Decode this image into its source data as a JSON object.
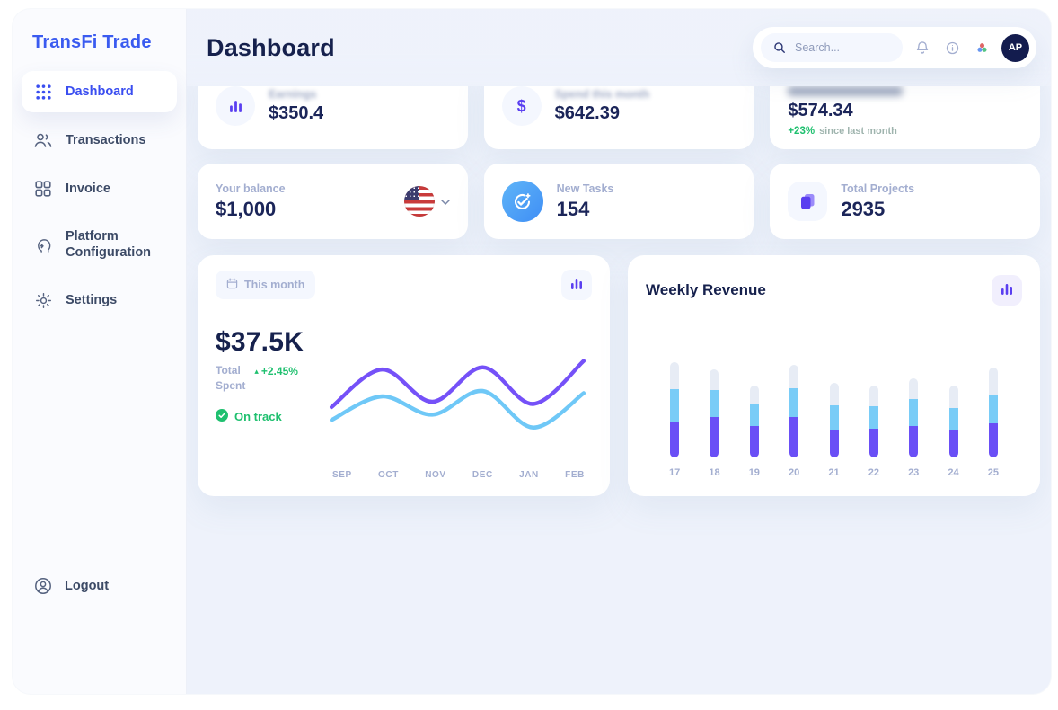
{
  "brand": {
    "name": "TransFi Trade"
  },
  "sidebar": {
    "items": [
      {
        "label": "Dashboard"
      },
      {
        "label": "Transactions"
      },
      {
        "label": "Invoice"
      },
      {
        "label": "Platform Configuration"
      },
      {
        "label": "Settings"
      }
    ],
    "logout_label": "Logout"
  },
  "header": {
    "title": "Dashboard",
    "search_placeholder": "Search...",
    "avatar_initials": "AP"
  },
  "stat_cards_top": [
    {
      "label": "Earnings",
      "value": "$350.4"
    },
    {
      "label": "Spend this month",
      "value": "$642.39"
    },
    {
      "label": "",
      "value": "$574.34",
      "delta": "+23%",
      "delta_note": "since last month"
    }
  ],
  "stat_cards_mid": [
    {
      "label": "Your balance",
      "value": "$1,000"
    },
    {
      "label": "New Tasks",
      "value": "154"
    },
    {
      "label": "Total Projects",
      "value": "2935"
    }
  ],
  "total_spent_card": {
    "chip_label": "This month",
    "value": "$37.5K",
    "caption_line1": "Total",
    "caption_line2": "Spent",
    "delta": "+2.45%",
    "delta_arrow": "▴",
    "status": "On track"
  },
  "weekly_revenue_card": {
    "title": "Weekly Revenue"
  },
  "colors": {
    "accent_blue": "#3a4ef0",
    "navy": "#1b2559",
    "green": "#1fc06f",
    "line_purple": "#7551f8",
    "line_sky": "#6fc8f7",
    "bar_gray": "#e7ecf5"
  },
  "chart_data": [
    {
      "type": "line",
      "title": "Total Spent – This month",
      "x": [
        "SEP",
        "OCT",
        "NOV",
        "DEC",
        "JAN",
        "FEB"
      ],
      "series": [
        {
          "name": "purple",
          "color": "#7551f8",
          "values": [
            45,
            80,
            50,
            82,
            48,
            88
          ]
        },
        {
          "name": "sky",
          "color": "#6fc8f7",
          "values": [
            33,
            55,
            38,
            60,
            26,
            58
          ]
        }
      ],
      "ylim": [
        0,
        100
      ],
      "grid": false,
      "legend": "none"
    },
    {
      "type": "bar",
      "stacked": true,
      "title": "Weekly Revenue",
      "categories": [
        "17",
        "18",
        "19",
        "20",
        "21",
        "22",
        "23",
        "24",
        "25"
      ],
      "series": [
        {
          "name": "purple",
          "color": "#6a4ff6",
          "values": [
            40,
            45,
            35,
            45,
            30,
            32,
            35,
            30,
            38
          ]
        },
        {
          "name": "sky",
          "color": "#79ccf7",
          "values": [
            36,
            30,
            25,
            32,
            28,
            25,
            30,
            25,
            32
          ]
        },
        {
          "name": "gray",
          "color": "#e7ecf5",
          "values": [
            30,
            23,
            20,
            26,
            25,
            23,
            23,
            25,
            30
          ]
        }
      ],
      "legend": "none"
    }
  ]
}
